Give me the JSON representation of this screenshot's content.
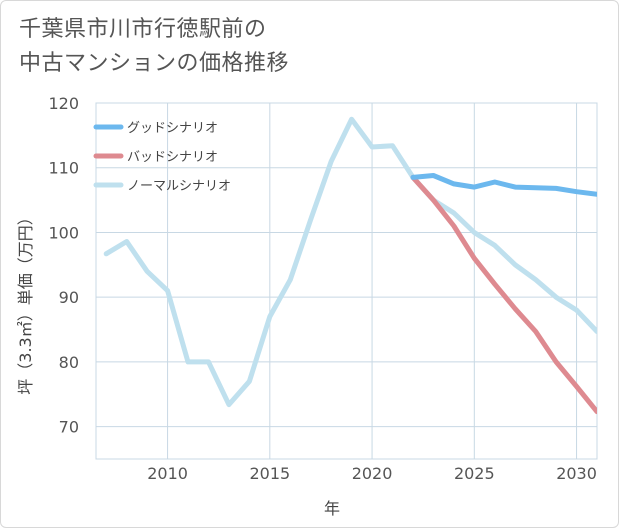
{
  "chart_data": {
    "type": "line",
    "title": "千葉県市川市行徳駅前の\n中古マンションの価格推移",
    "xlabel": "年",
    "ylabel": "坪（3.3㎡）単価（万円）",
    "xlim": [
      2006.5,
      2031
    ],
    "ylim": [
      65,
      120
    ],
    "x_ticks": [
      2010,
      2015,
      2020,
      2025,
      2030
    ],
    "y_ticks": [
      70,
      80,
      90,
      100,
      110,
      120
    ],
    "grid": true,
    "legend_position": "top-left",
    "series": [
      {
        "name": "グッドシナリオ",
        "color": "#6cb8ee",
        "x": [
          2022,
          2023,
          2024,
          2025,
          2026,
          2027,
          2028,
          2029,
          2030,
          2031
        ],
        "values": [
          108.5,
          108.8,
          107.5,
          107.0,
          107.8,
          107.0,
          106.9,
          106.8,
          106.3,
          105.9
        ]
      },
      {
        "name": "バッドシナリオ",
        "color": "#de8a90",
        "x": [
          2022,
          2023,
          2024,
          2025,
          2026,
          2027,
          2028,
          2029,
          2030,
          2031
        ],
        "values": [
          108.5,
          105.0,
          101.0,
          96.0,
          92.0,
          88.2,
          84.7,
          80.0,
          76.2,
          72.3
        ]
      },
      {
        "name": "ノーマルシナリオ",
        "color": "#bfe0ee",
        "x": [
          2007,
          2008,
          2009,
          2010,
          2011,
          2012,
          2013,
          2014,
          2015,
          2016,
          2017,
          2018,
          2019,
          2020,
          2021,
          2022,
          2023,
          2024,
          2025,
          2026,
          2027,
          2028,
          2029,
          2030,
          2031
        ],
        "values": [
          96.7,
          98.6,
          94.0,
          91.0,
          80.0,
          80.0,
          73.4,
          77.0,
          87.0,
          92.7,
          102.0,
          111.0,
          117.5,
          113.2,
          113.4,
          108.5,
          105.0,
          103.0,
          100.0,
          98.0,
          95.0,
          92.7,
          90.0,
          88.0,
          84.7
        ]
      }
    ]
  }
}
